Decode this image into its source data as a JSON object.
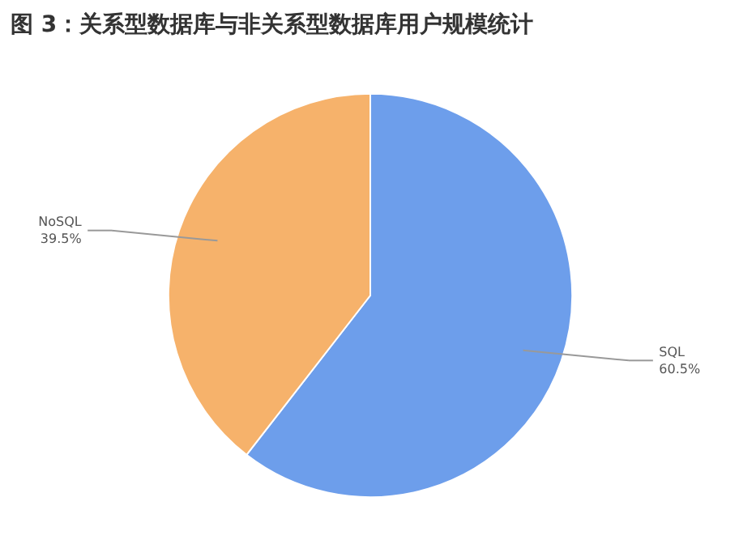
{
  "chart_data": {
    "type": "pie",
    "title": "图 3：关系型数据库与非关系型数据库用户规模统计",
    "categories": [
      "SQL",
      "NoSQL"
    ],
    "values": [
      60.5,
      39.5
    ],
    "colors": [
      "#6d9eeb",
      "#f6b26b"
    ],
    "value_labels": [
      "60.5%",
      "39.5%"
    ]
  }
}
